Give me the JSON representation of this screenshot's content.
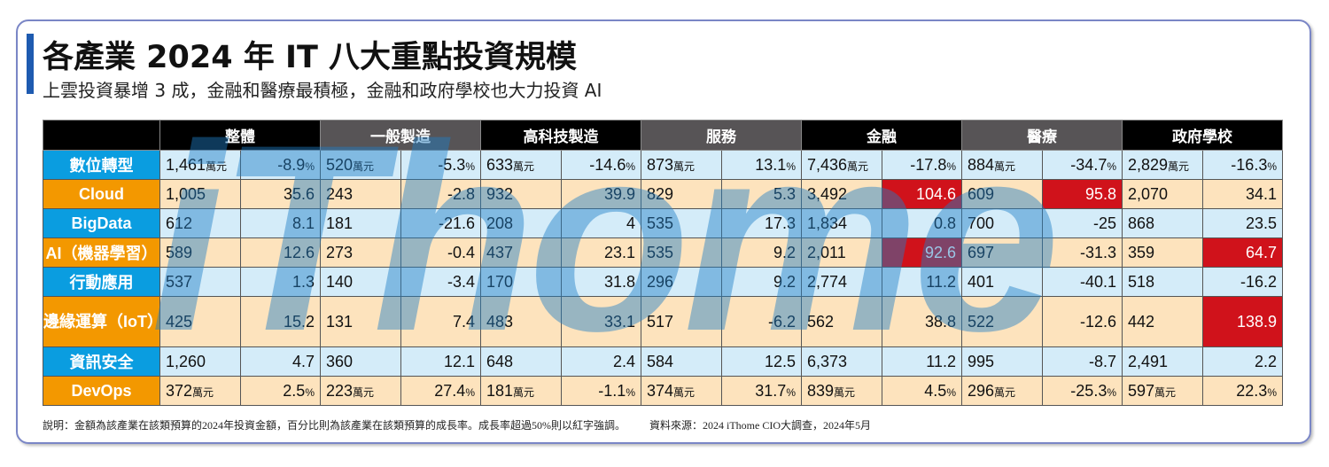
{
  "title": "各產業 2024 年 IT 八大重點投資規模",
  "subtitle": "上雲投資暴增 3 成，金融和醫療最積極，金融和政府學校也大力投資 AI",
  "watermark": "iThome",
  "colors": {
    "label_blue": "#0a9de0",
    "label_orange": "#f39800",
    "row_blue": "#d4ecf9",
    "row_orange": "#fde3bd",
    "highlight_red": "#d0121b",
    "header_black": "#000000",
    "header_gray": "#575456",
    "accent": "#1e5bb0"
  },
  "units": {
    "amount": "萬元",
    "percent": "%"
  },
  "chart_data": {
    "type": "table",
    "columns": [
      "整體",
      "一般製造",
      "高科技製造",
      "服務",
      "金融",
      "醫療",
      "政府學校"
    ],
    "rows": [
      {
        "label": "數位轉型",
        "color": "blue",
        "values": [
          [
            "1,461",
            "-8.9"
          ],
          [
            "520",
            "-5.3"
          ],
          [
            "633",
            "-14.6"
          ],
          [
            "873",
            "13.1"
          ],
          [
            "7,436",
            "-17.8"
          ],
          [
            "884",
            "-34.7"
          ],
          [
            "2,829",
            "-16.3"
          ]
        ],
        "units": true
      },
      {
        "label": "Cloud",
        "color": "orange",
        "values": [
          [
            "1,005",
            "35.6"
          ],
          [
            "243",
            "-2.8"
          ],
          [
            "932",
            "39.9"
          ],
          [
            "829",
            "5.3"
          ],
          [
            "3,492",
            "104.6"
          ],
          [
            "609",
            "95.8"
          ],
          [
            "2,070",
            "34.1"
          ]
        ]
      },
      {
        "label": "BigData",
        "color": "blue",
        "values": [
          [
            "612",
            "8.1"
          ],
          [
            "181",
            "-21.6"
          ],
          [
            "208",
            "4"
          ],
          [
            "535",
            "17.3"
          ],
          [
            "1,834",
            "0.8"
          ],
          [
            "700",
            "-25"
          ],
          [
            "868",
            "23.5"
          ]
        ]
      },
      {
        "label": "AI（機器學習）",
        "color": "orange",
        "values": [
          [
            "589",
            "12.6"
          ],
          [
            "273",
            "-0.4"
          ],
          [
            "437",
            "23.1"
          ],
          [
            "535",
            "9.2"
          ],
          [
            "2,011",
            "92.6"
          ],
          [
            "697",
            "-31.3"
          ],
          [
            "359",
            "64.7"
          ]
        ]
      },
      {
        "label": "行動應用",
        "color": "blue",
        "values": [
          [
            "537",
            "1.3"
          ],
          [
            "140",
            "-3.4"
          ],
          [
            "170",
            "31.8"
          ],
          [
            "296",
            "9.2"
          ],
          [
            "2,774",
            "11.2"
          ],
          [
            "401",
            "-40.1"
          ],
          [
            "518",
            "-16.2"
          ]
        ]
      },
      {
        "label": "邊緣運算（IoT）",
        "color": "orange",
        "values": [
          [
            "425",
            "15.2"
          ],
          [
            "131",
            "7.4"
          ],
          [
            "483",
            "33.1"
          ],
          [
            "517",
            "-6.2"
          ],
          [
            "562",
            "38.8"
          ],
          [
            "522",
            "-12.6"
          ],
          [
            "442",
            "138.9"
          ]
        ]
      },
      {
        "label": "資訊安全",
        "color": "blue",
        "values": [
          [
            "1,260",
            "4.7"
          ],
          [
            "360",
            "12.1"
          ],
          [
            "648",
            "2.4"
          ],
          [
            "584",
            "12.5"
          ],
          [
            "6,373",
            "11.2"
          ],
          [
            "995",
            "-8.7"
          ],
          [
            "2,491",
            "2.2"
          ]
        ]
      },
      {
        "label": "DevOps",
        "color": "orange",
        "values": [
          [
            "372",
            "2.5"
          ],
          [
            "223",
            "27.4"
          ],
          [
            "181",
            "-1.1"
          ],
          [
            "374",
            "31.7"
          ],
          [
            "839",
            "4.5"
          ],
          [
            "296",
            "-25.3"
          ],
          [
            "597",
            "22.3"
          ]
        ],
        "units": true
      }
    ],
    "highlight_threshold_percent": 50
  },
  "footnote": {
    "note": "說明：金額為該產業在該類預算的2024年投資金額，百分比則為該產業在該類預算的成長率。成長率超過50%則以紅字強調。",
    "source": "資料來源：2024 iThome CIO大調查，2024年5月"
  }
}
